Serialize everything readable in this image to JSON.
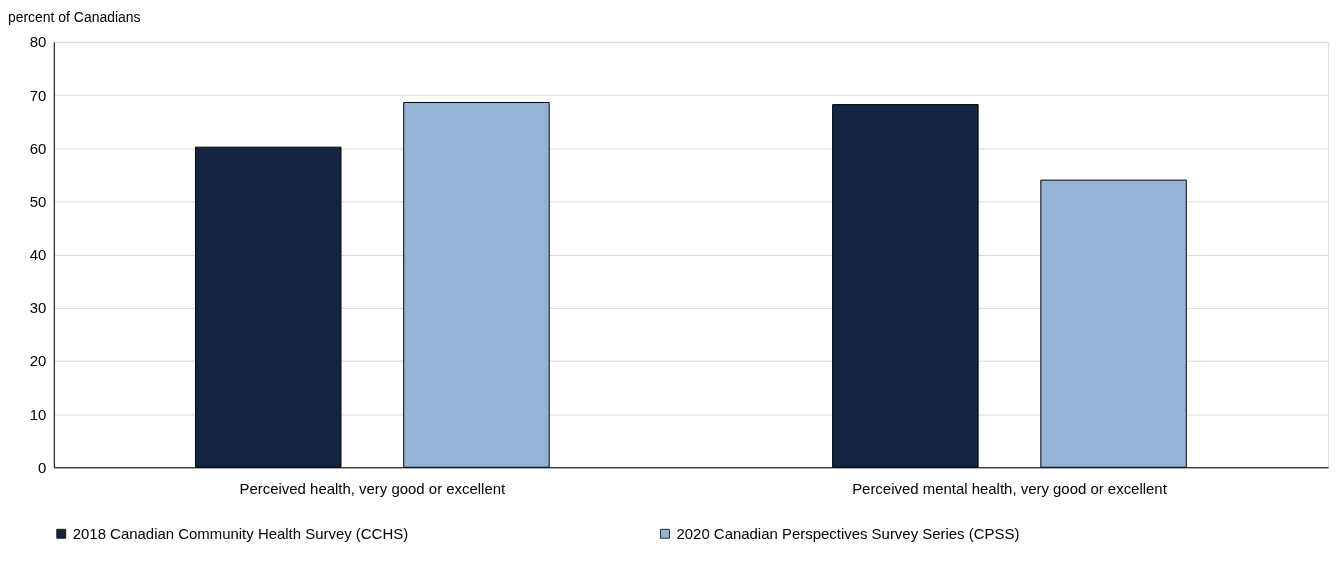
{
  "chart_data": {
    "type": "bar",
    "ylabel": "percent of Canadians",
    "categories": [
      "Perceived health, very good or excellent",
      "Perceived mental health, very good or excellent"
    ],
    "series": [
      {
        "name": "2018 Canadian Community Health Survey (CCHS)",
        "color": "#132641",
        "values": [
          60.2,
          68.2
        ]
      },
      {
        "name": "2020 Canadian Perspectives Survey Series (CPSS)",
        "color": "#95b3d7",
        "values": [
          68.6,
          54.0
        ]
      }
    ],
    "ylim": [
      0,
      80
    ],
    "yticks": [
      0,
      10,
      20,
      30,
      40,
      50,
      60,
      70,
      80
    ],
    "grid": "y",
    "legend": "bottom"
  }
}
